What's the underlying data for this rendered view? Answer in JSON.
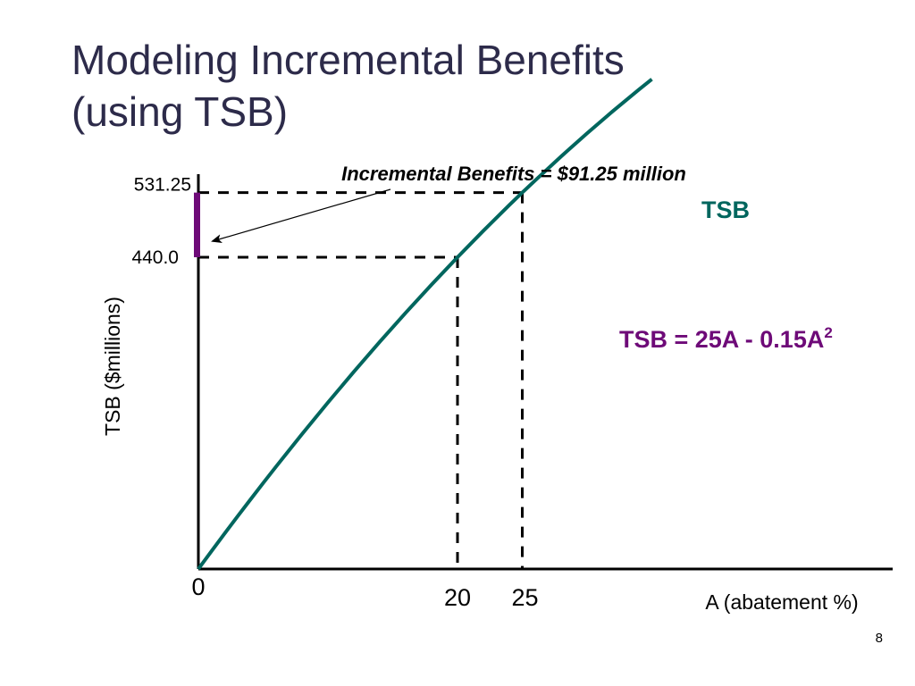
{
  "slide": {
    "title_line1": "Modeling Incremental Benefits",
    "title_line2": "(using TSB)",
    "page_number": "8"
  },
  "chart_data": {
    "type": "line",
    "equation": {
      "text": "TSB = 25A - 0.15A",
      "superscript": "2"
    },
    "xlabel": "A (abatement %)",
    "ylabel": "TSB ($millions)",
    "origin_label": "0",
    "x_ticks": [
      "20",
      "25"
    ],
    "y_ticks": [
      "531.25",
      "440.0"
    ],
    "series": [
      {
        "name": "TSB",
        "x": [
          0,
          0.25,
          0.5,
          1,
          2,
          3,
          4,
          5,
          6,
          8,
          10,
          12,
          14,
          16,
          18,
          20,
          22,
          24,
          25,
          26,
          28,
          30,
          32,
          34,
          35
        ],
        "y": [
          0,
          6.24,
          12.46,
          24.85,
          49.4,
          73.65,
          97.6,
          121.25,
          144.6,
          190.4,
          235,
          278.4,
          320.6,
          361.6,
          401.4,
          440,
          477.4,
          513.6,
          531.25,
          548.6,
          582.4,
          615,
          646.4,
          676.6,
          691.25
        ]
      }
    ],
    "highlight_points": [
      {
        "x": 20,
        "y": 440.0
      },
      {
        "x": 25,
        "y": 531.25
      }
    ],
    "annotation": {
      "text": "Incremental Benefits = $91.25 million",
      "from": 440.0,
      "to": 531.25
    },
    "colors": {
      "curve": "#00665e",
      "equation": "#6e0a78",
      "highlight_bar": "#6e0a78",
      "axes": "#000000",
      "title": "#2d2b4a"
    }
  }
}
